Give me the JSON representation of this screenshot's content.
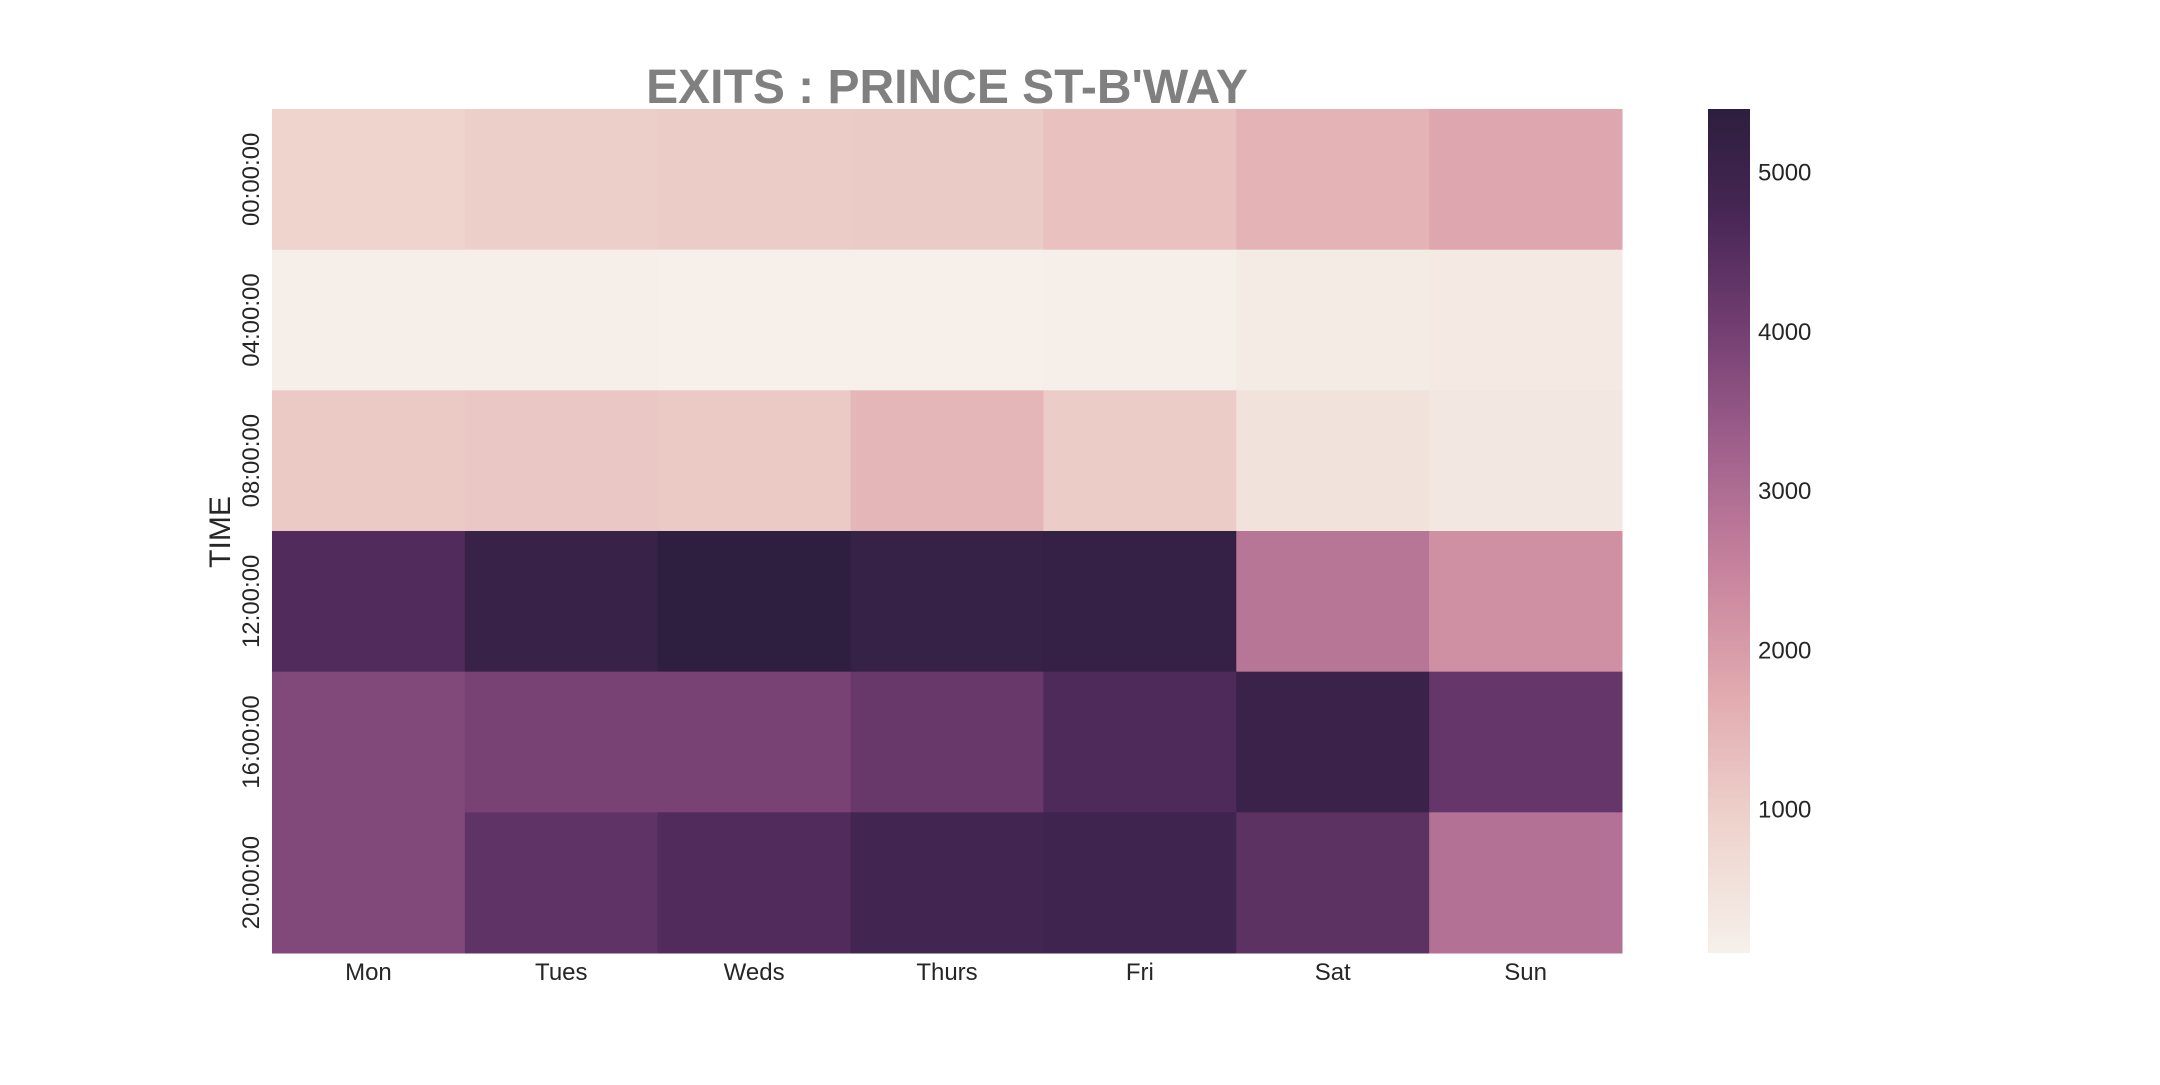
{
  "chart_data": {
    "type": "heatmap",
    "title": "EXITS : PRINCE ST-B'WAY",
    "xlabel": "",
    "ylabel": "TIME",
    "x_categories": [
      "Mon",
      "Tues",
      "Weds",
      "Thurs",
      "Fri",
      "Sat",
      "Sun"
    ],
    "y_categories": [
      "00:00:00",
      "04:00:00",
      "08:00:00",
      "12:00:00",
      "16:00:00",
      "20:00:00"
    ],
    "values": [
      [
        900,
        1000,
        1050,
        1080,
        1250,
        1550,
        1800
      ],
      [
        150,
        150,
        120,
        130,
        150,
        250,
        300
      ],
      [
        1100,
        1150,
        1100,
        1500,
        1050,
        500,
        350
      ],
      [
        4600,
        5100,
        5350,
        5150,
        5200,
        2800,
        2250
      ],
      [
        3800,
        3950,
        3950,
        4200,
        4650,
        5050,
        4250
      ],
      [
        3800,
        4350,
        4600,
        4850,
        4950,
        4400,
        2900
      ]
    ],
    "colorbar": {
      "min": 100,
      "max": 5400,
      "ticks": [
        1000,
        2000,
        3000,
        4000,
        5000
      ]
    },
    "grid": false
  }
}
